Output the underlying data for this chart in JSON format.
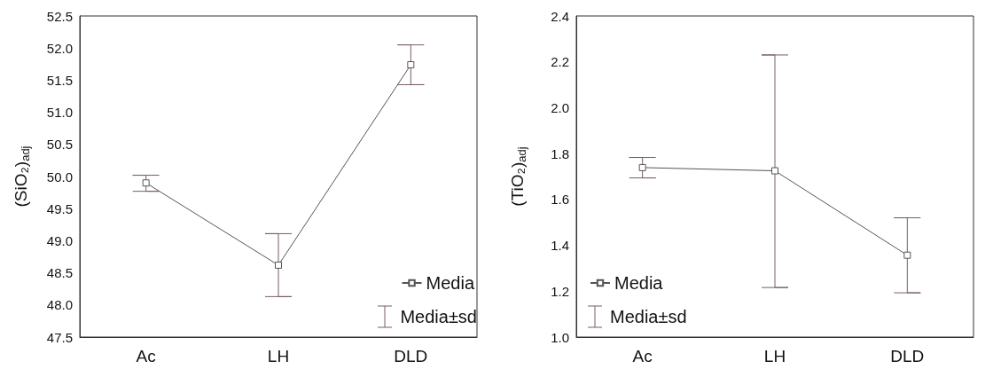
{
  "chart_data": [
    {
      "type": "line",
      "ylabel": "(SiO₂)$_{adj}$",
      "categories": [
        "Ac",
        "LH",
        "DLD"
      ],
      "series": [
        {
          "name": "Media",
          "color": "#555555",
          "values": [
            49.9,
            48.62,
            51.74
          ],
          "errors": [
            [
              49.77,
              50.02
            ],
            [
              48.13,
              49.11
            ],
            [
              51.43,
              52.05
            ]
          ]
        }
      ],
      "ylim": [
        47.5,
        52.5
      ],
      "yticks": [
        47.5,
        {
          "value": 48,
          "label": "48.0"
        },
        48.5,
        {
          "value": 49,
          "label": "49.0"
        },
        49.5,
        {
          "value": 50,
          "label": "50.0"
        },
        50.5,
        {
          "value": 51,
          "label": "51.0"
        },
        51.5,
        {
          "value": 52,
          "label": "52.0"
        },
        52.5
      ],
      "marker": "square",
      "line_style": "solid",
      "grid": false,
      "legend": "bottom right",
      "annotations": [
        "Media±sd"
      ]
    },
    {
      "type": "line",
      "ylabel": "(TiO₂)$_{adj}$",
      "categories": [
        "Ac",
        "LH",
        "DLD"
      ],
      "series": [
        {
          "name": "Media",
          "color": "#555555",
          "values": [
            1.739,
            1.725,
            1.357
          ],
          "errors": [
            [
              1.694,
              1.783
            ],
            [
              1.216,
              2.23
            ],
            [
              1.193,
              1.52
            ]
          ]
        }
      ],
      "ylim": [
        1.0,
        2.4
      ],
      "yticks": [
        {
          "value": 1,
          "label": "1.0"
        },
        1.2,
        1.4,
        1.6,
        1.8,
        {
          "value": 2,
          "label": "2.0"
        },
        2.2,
        2.4
      ],
      "marker": "square",
      "line_style": "solid",
      "grid": false,
      "legend": "bottom left",
      "annotations": [
        "Media±sd"
      ]
    }
  ]
}
